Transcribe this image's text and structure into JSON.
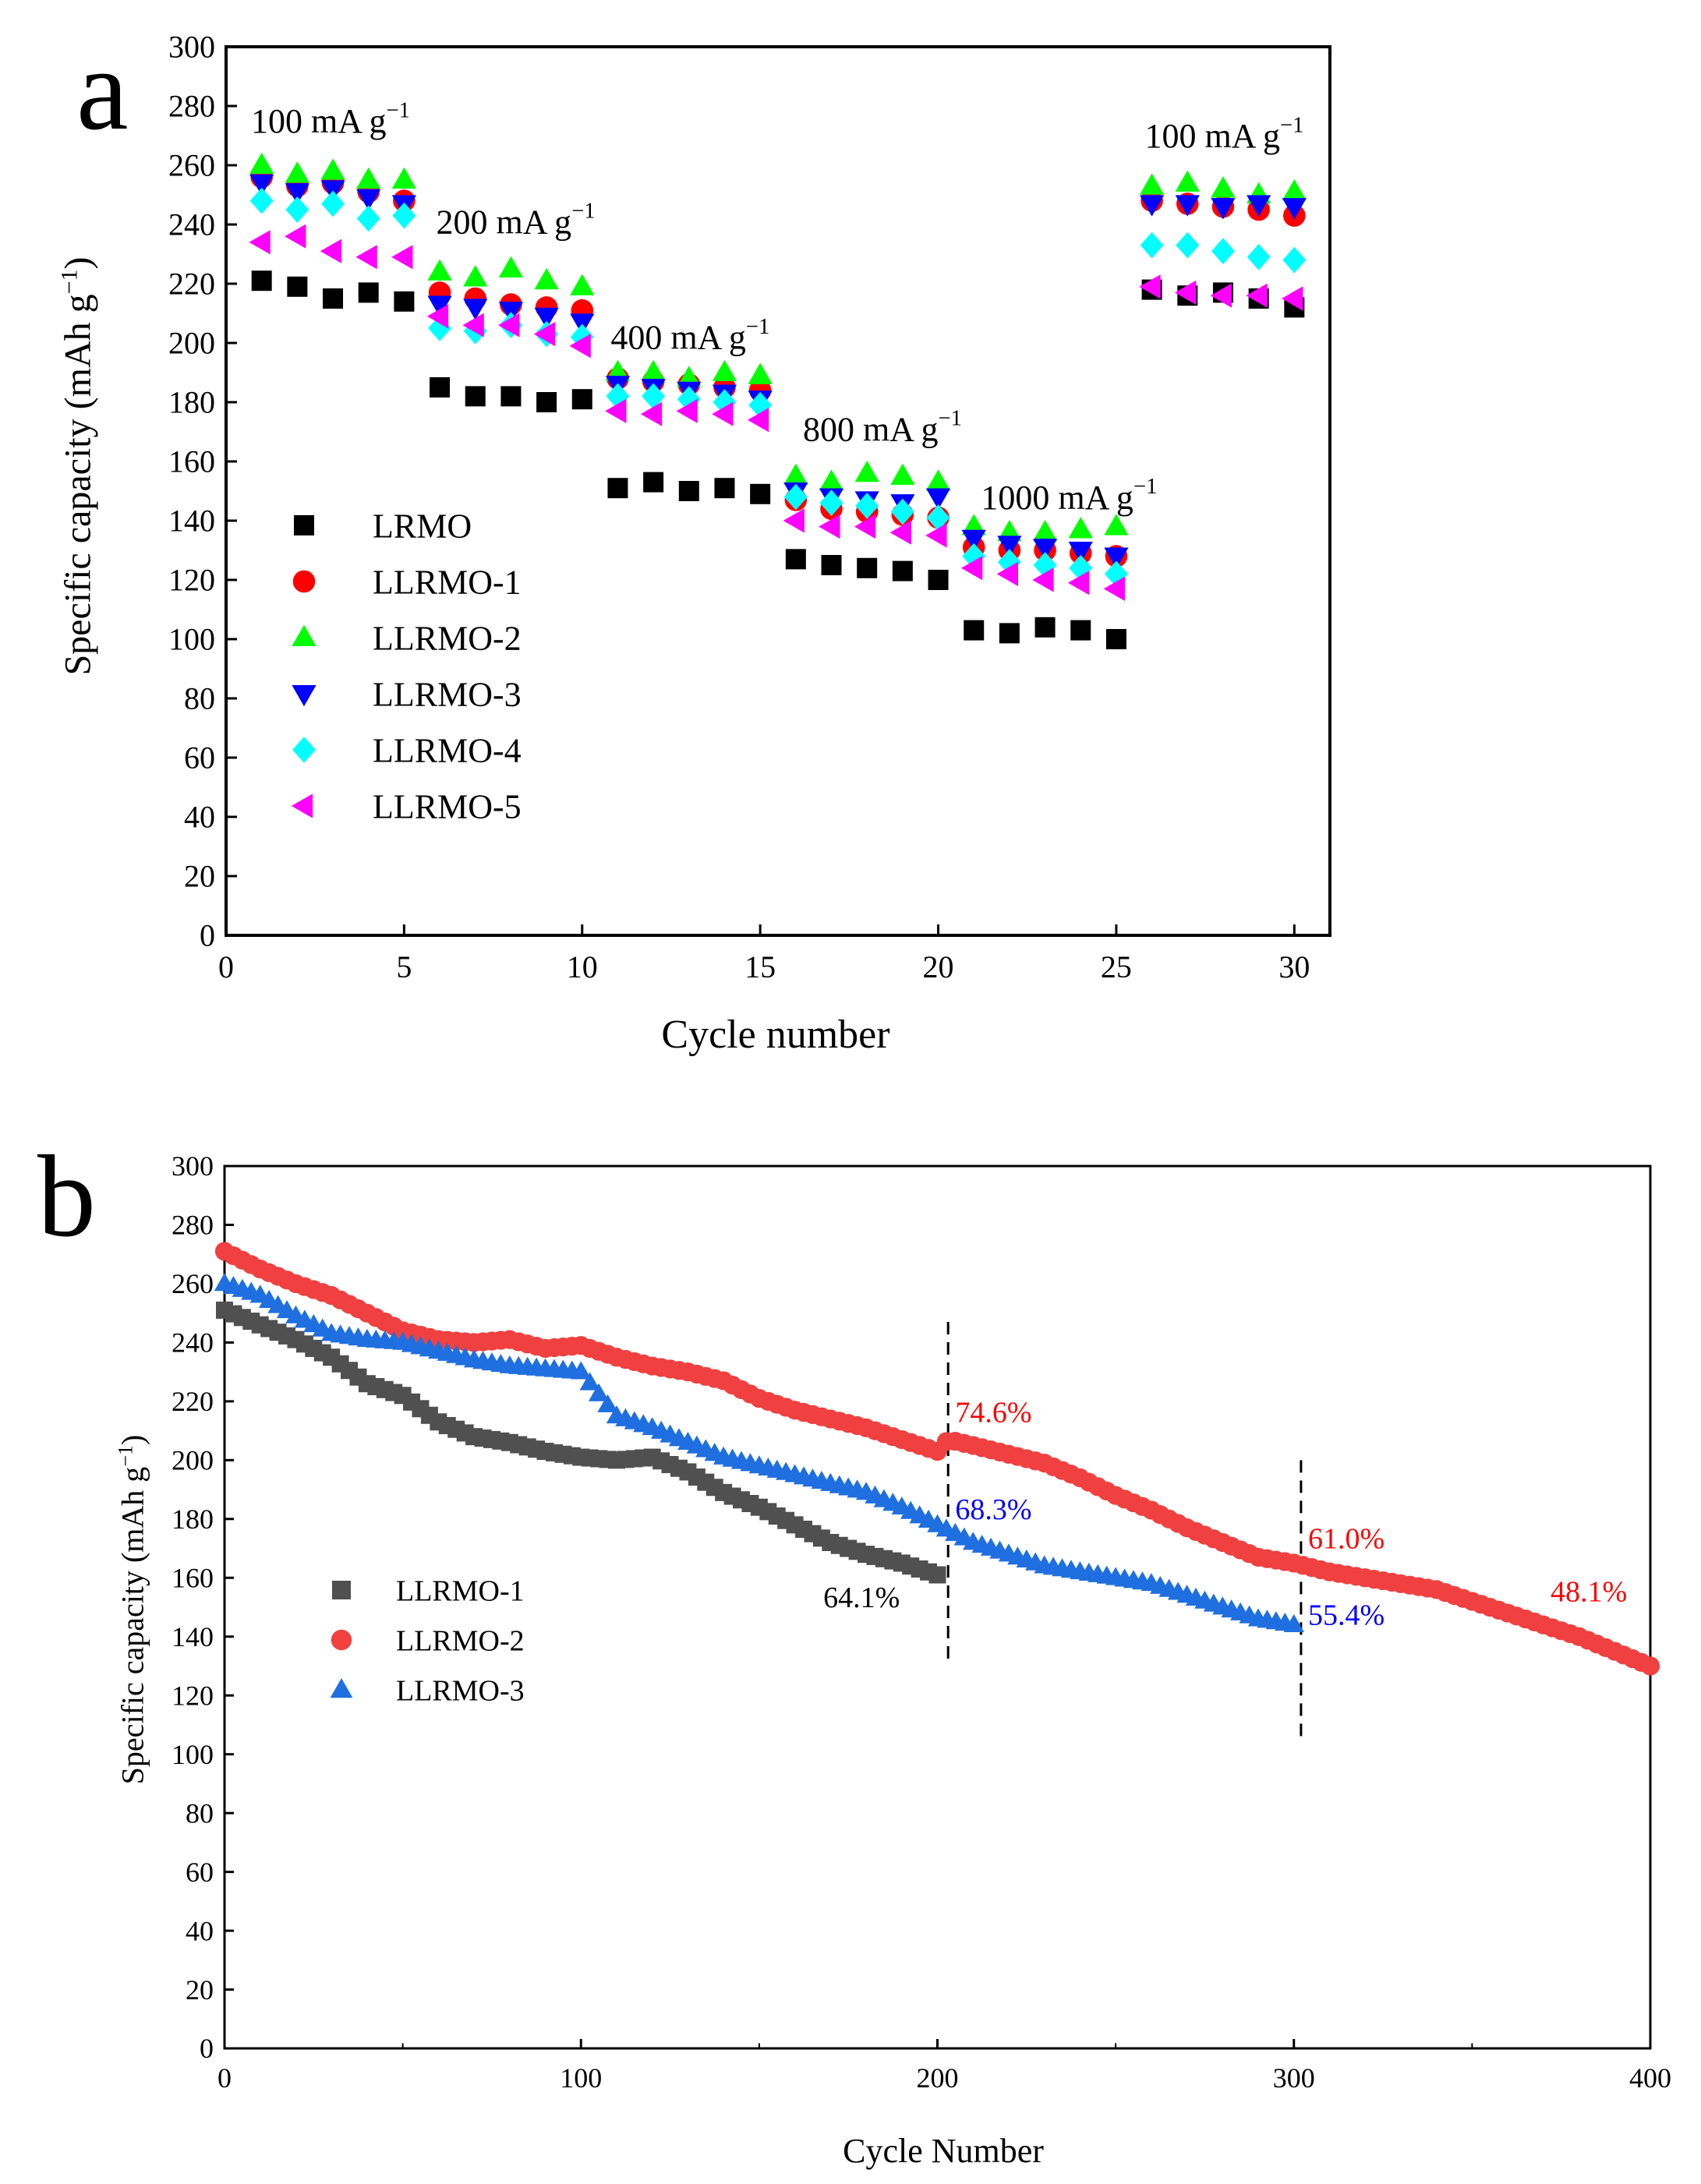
{
  "panel_labels": {
    "a": "a",
    "b": "b"
  },
  "chart_data": [
    {
      "type": "scatter",
      "panel": "a",
      "title": "",
      "xlabel": "Cycle number",
      "ylabel_main": "Specific capacity (mAh g",
      "ylabel_sup": "−1",
      "ylabel_close": ")",
      "xlim": [
        0,
        31
      ],
      "ylim": [
        0,
        300
      ],
      "xticks": [
        0,
        5,
        10,
        15,
        20,
        25,
        30
      ],
      "yticks": [
        0,
        20,
        40,
        60,
        80,
        100,
        120,
        140,
        160,
        180,
        200,
        220,
        240,
        260,
        280,
        300
      ],
      "legend_position": "left-middle",
      "annotations": [
        {
          "text": "100 mA g",
          "sup": "−1",
          "x": 0.7,
          "y": 271
        },
        {
          "text": "200 mA g",
          "sup": "−1",
          "x": 5.9,
          "y": 237
        },
        {
          "text": "400 mA g",
          "sup": "−1",
          "x": 10.8,
          "y": 198
        },
        {
          "text": "800 mA g",
          "sup": "−1",
          "x": 16.2,
          "y": 167
        },
        {
          "text": "1000 mA g",
          "sup": "−1",
          "x": 21.2,
          "y": 144
        },
        {
          "text": "100 mA g",
          "sup": "−1",
          "x": 25.8,
          "y": 266
        }
      ],
      "series": [
        {
          "name": "LRMO",
          "marker": "square",
          "color": "#000000",
          "x": [
            1,
            2,
            3,
            4,
            5,
            6,
            7,
            8,
            9,
            10,
            11,
            12,
            13,
            14,
            15,
            16,
            17,
            18,
            19,
            20,
            21,
            22,
            23,
            24,
            25,
            26,
            27,
            28,
            29,
            30
          ],
          "y": [
            221,
            219,
            215,
            217,
            214,
            185,
            182,
            182,
            180,
            181,
            151,
            153,
            150,
            151,
            149,
            127,
            125,
            124,
            123,
            120,
            103,
            102,
            104,
            103,
            100,
            218,
            216,
            217,
            215,
            212
          ]
        },
        {
          "name": "LLRMO-1",
          "marker": "circle",
          "color": "#ff0000",
          "x": [
            1,
            2,
            3,
            4,
            5,
            6,
            7,
            8,
            9,
            10,
            11,
            12,
            13,
            14,
            15,
            16,
            17,
            18,
            19,
            20,
            21,
            22,
            23,
            24,
            25,
            26,
            27,
            28,
            29,
            30
          ],
          "y": [
            256,
            253,
            254,
            251,
            248,
            217,
            215,
            213,
            212,
            211,
            188,
            187,
            186,
            185,
            184,
            147,
            144,
            143,
            142,
            141,
            131,
            130,
            130,
            129,
            128,
            248,
            247,
            246,
            245,
            243
          ]
        },
        {
          "name": "LLRMO-2",
          "marker": "triangle-up",
          "color": "#00ff00",
          "x": [
            1,
            2,
            3,
            4,
            5,
            6,
            7,
            8,
            9,
            10,
            11,
            12,
            13,
            14,
            15,
            16,
            17,
            18,
            19,
            20,
            21,
            22,
            23,
            24,
            25,
            26,
            27,
            28,
            29,
            30
          ],
          "y": [
            260,
            257,
            258,
            255,
            255,
            224,
            222,
            225,
            221,
            219,
            190,
            190,
            188,
            190,
            189,
            155,
            153,
            156,
            155,
            153,
            138,
            136,
            136,
            137,
            138,
            253,
            254,
            252,
            250,
            251
          ]
        },
        {
          "name": "LLRMO-3",
          "marker": "triangle-down",
          "color": "#0000ff",
          "x": [
            1,
            2,
            3,
            4,
            5,
            6,
            7,
            8,
            9,
            10,
            11,
            12,
            13,
            14,
            15,
            16,
            17,
            18,
            19,
            20,
            21,
            22,
            23,
            24,
            25,
            26,
            27,
            28,
            29,
            30
          ],
          "y": [
            254,
            251,
            252,
            249,
            247,
            213,
            212,
            211,
            209,
            207,
            186,
            185,
            184,
            183,
            181,
            150,
            148,
            147,
            146,
            148,
            134,
            132,
            131,
            130,
            128,
            247,
            247,
            246,
            247,
            246
          ]
        },
        {
          "name": "LLRMO-4",
          "marker": "diamond",
          "color": "#00ffff",
          "x": [
            1,
            2,
            3,
            4,
            5,
            6,
            7,
            8,
            9,
            10,
            11,
            12,
            13,
            14,
            15,
            16,
            17,
            18,
            19,
            20,
            21,
            22,
            23,
            24,
            25,
            26,
            27,
            28,
            29,
            30
          ],
          "y": [
            248,
            245,
            247,
            242,
            243,
            205,
            204,
            206,
            203,
            202,
            182,
            182,
            181,
            180,
            179,
            148,
            146,
            145,
            143,
            141,
            128,
            126,
            125,
            124,
            122,
            233,
            233,
            231,
            229,
            228
          ]
        },
        {
          "name": "LLRMO-5",
          "marker": "triangle-left",
          "color": "#ff00ff",
          "x": [
            1,
            2,
            3,
            4,
            5,
            6,
            7,
            8,
            9,
            10,
            11,
            12,
            13,
            14,
            15,
            16,
            17,
            18,
            19,
            20,
            21,
            22,
            23,
            24,
            25,
            26,
            27,
            28,
            29,
            30
          ],
          "y": [
            234,
            236,
            231,
            229,
            229,
            209,
            206,
            206,
            203,
            199,
            177,
            176,
            177,
            176,
            174,
            140,
            138,
            138,
            136,
            135,
            124,
            122,
            120,
            119,
            117,
            219,
            217,
            216,
            216,
            215
          ]
        }
      ]
    },
    {
      "type": "scatter",
      "panel": "b",
      "title": "",
      "xlabel": "Cycle Number",
      "ylabel_main": "Specific capacity (mAh g",
      "ylabel_sup": "−1",
      "ylabel_close": ")",
      "xlim": [
        0,
        400
      ],
      "ylim": [
        0,
        300
      ],
      "xticks": [
        0,
        100,
        200,
        300,
        400
      ],
      "yticks": [
        0,
        20,
        40,
        60,
        80,
        100,
        120,
        140,
        160,
        180,
        200,
        220,
        240,
        260,
        280,
        300
      ],
      "legend_position": "left-middle",
      "vlines": [
        {
          "x": 203,
          "y_from": 132,
          "y_to": 247
        },
        {
          "x": 302,
          "y_from": 106,
          "y_to": 200
        }
      ],
      "annotations": [
        {
          "text": "64.1%",
          "x": 168,
          "y": 150,
          "color": "#000000"
        },
        {
          "text": "74.6%",
          "x": 205,
          "y": 213,
          "color": "#ff0000"
        },
        {
          "text": "68.3%",
          "x": 205,
          "y": 180,
          "color": "#0000ff"
        },
        {
          "text": "61.0%",
          "x": 304,
          "y": 170,
          "color": "#ff0000"
        },
        {
          "text": "55.4%",
          "x": 304,
          "y": 144,
          "color": "#0000ff"
        },
        {
          "text": "48.1%",
          "x": 372,
          "y": 152,
          "color": "#ff0000"
        }
      ],
      "series": [
        {
          "name": "LLRMO-1",
          "marker": "square",
          "color": "#505050",
          "x": [
            0,
            10,
            20,
            30,
            40,
            50,
            60,
            70,
            80,
            90,
            100,
            110,
            120,
            130,
            140,
            150,
            160,
            170,
            180,
            190,
            200
          ],
          "y": [
            251,
            246,
            241,
            235,
            226,
            222,
            213,
            208,
            206,
            203,
            201,
            200,
            201,
            196,
            189,
            184,
            178,
            172,
            168,
            165,
            161
          ]
        },
        {
          "name": "LLRMO-2",
          "marker": "circle",
          "color": "#f04040",
          "x": [
            0,
            10,
            20,
            30,
            40,
            50,
            60,
            70,
            80,
            90,
            100,
            110,
            120,
            130,
            140,
            150,
            160,
            170,
            180,
            190,
            200,
            203,
            210,
            220,
            230,
            240,
            250,
            260,
            270,
            280,
            290,
            300,
            310,
            320,
            330,
            340,
            350,
            360,
            370,
            380,
            390,
            400
          ],
          "y": [
            271,
            265,
            260,
            256,
            250,
            244,
            241,
            240,
            241,
            238,
            239,
            235,
            232,
            230,
            227,
            221,
            217,
            214,
            211,
            207,
            203,
            207,
            205,
            202,
            199,
            194,
            188,
            183,
            177,
            172,
            167,
            165,
            162,
            160,
            158,
            156,
            152,
            148,
            144,
            140,
            135,
            130
          ]
        },
        {
          "name": "LLRMO-3",
          "marker": "triangle-up",
          "color": "#1f6fe0",
          "x": [
            0,
            10,
            20,
            30,
            40,
            50,
            60,
            70,
            80,
            90,
            100,
            110,
            120,
            130,
            140,
            150,
            160,
            170,
            180,
            190,
            200,
            210,
            220,
            230,
            240,
            250,
            260,
            270,
            280,
            290,
            300
          ],
          "y": [
            260,
            256,
            249,
            243,
            241,
            240,
            237,
            234,
            232,
            231,
            230,
            215,
            211,
            206,
            201,
            198,
            195,
            192,
            189,
            184,
            178,
            172,
            168,
            164,
            162,
            160,
            158,
            154,
            150,
            146,
            144
          ]
        }
      ]
    }
  ]
}
